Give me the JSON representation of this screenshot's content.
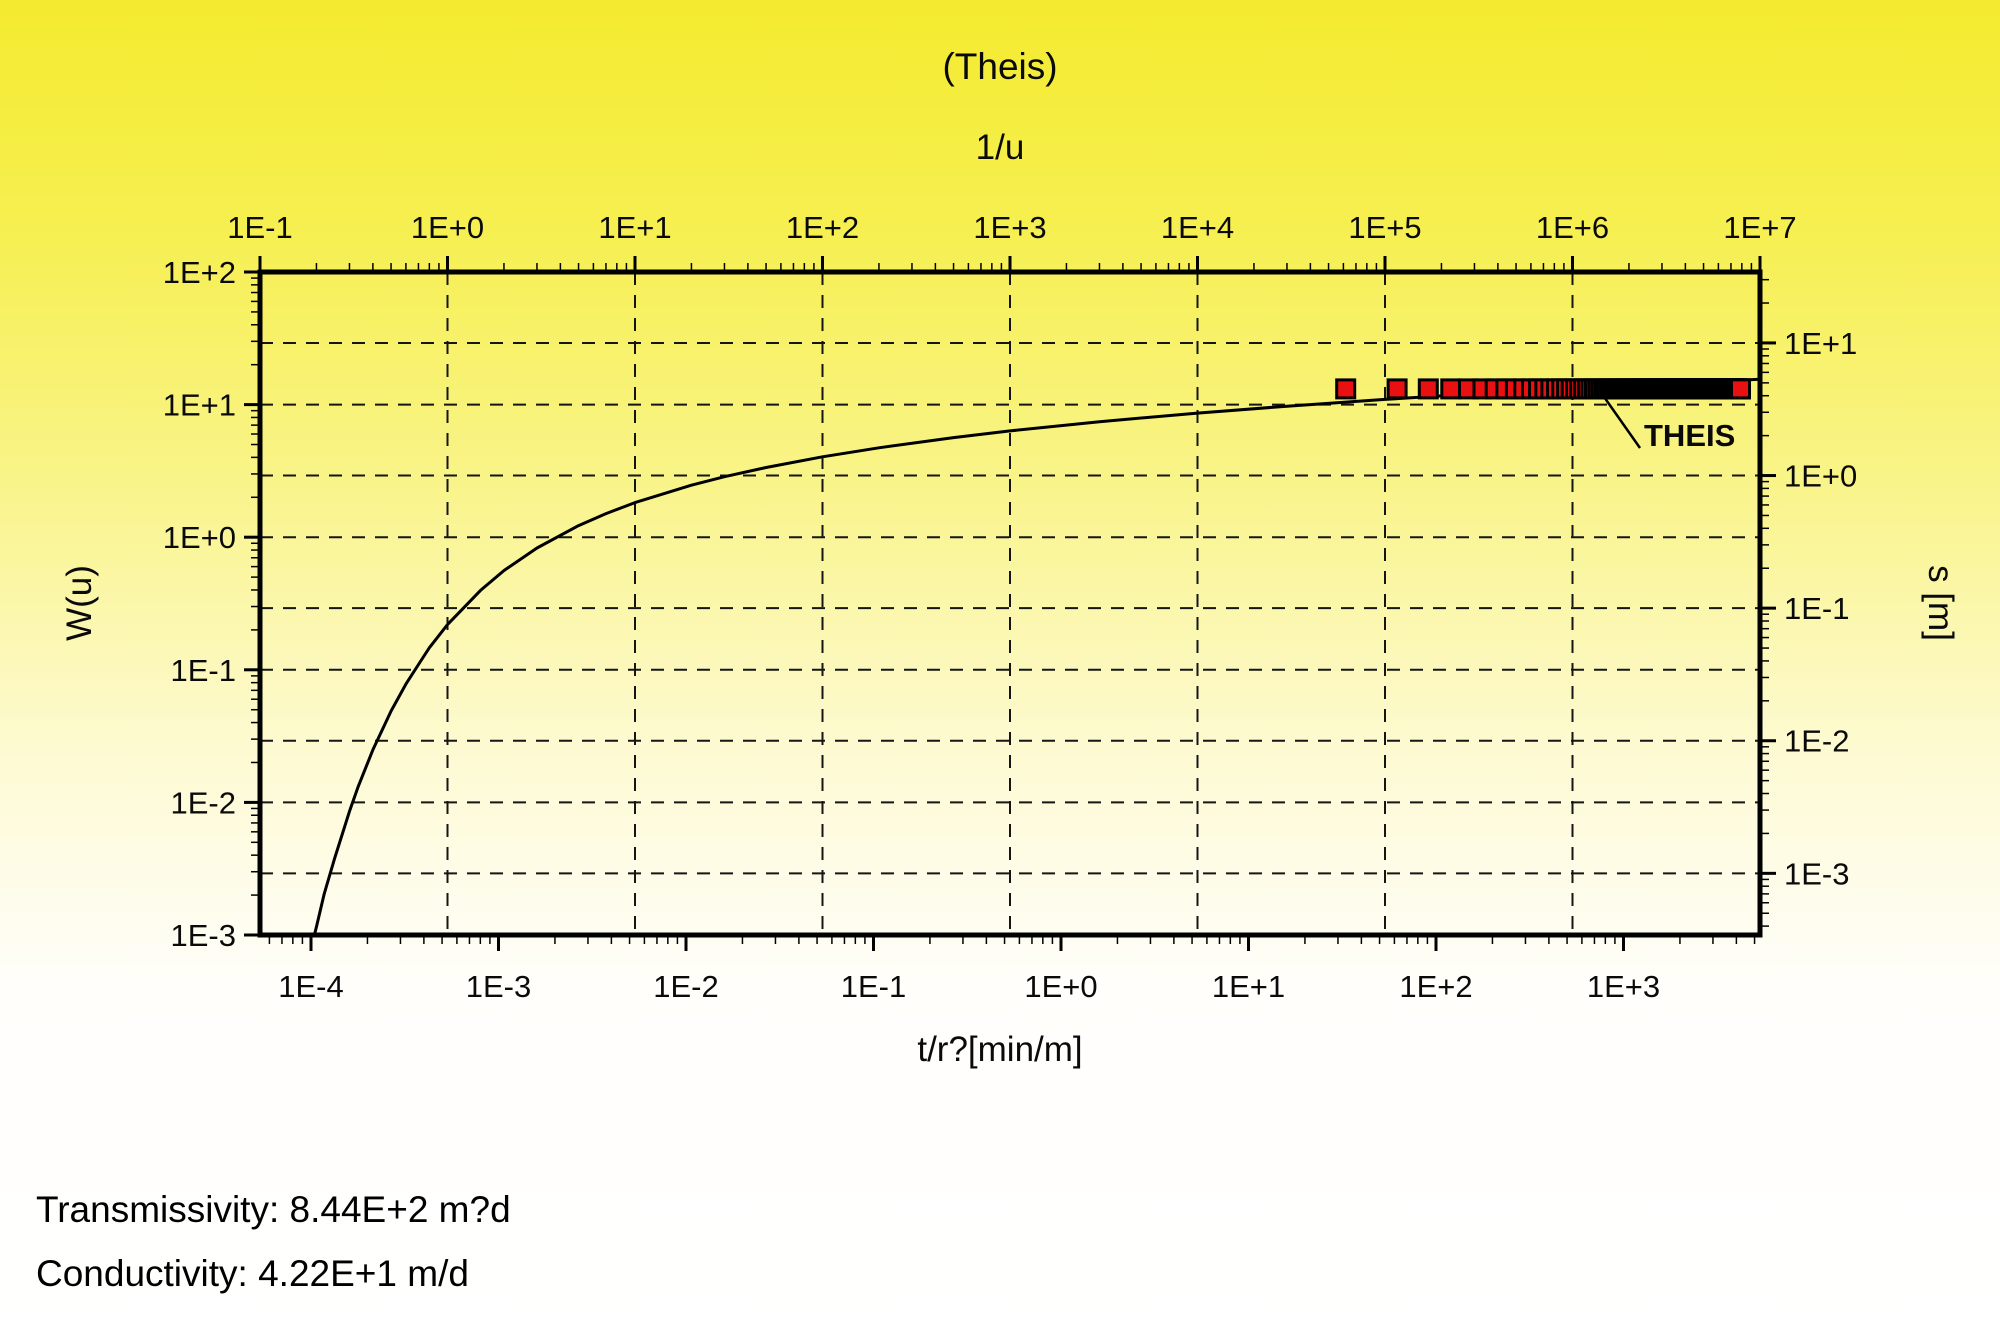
{
  "title": "(Theis)",
  "results": {
    "transmissivity": "Transmissivity: 8.44E+2 m?d",
    "conductivity": "Conductivity: 4.22E+1 m/d"
  },
  "chart_data": {
    "type": "line",
    "title": "(Theis)",
    "background": {
      "top_color": "#f4eb2f",
      "bottom_color": "#ffffff"
    },
    "axes": {
      "top": {
        "label": "1/u",
        "scale": "log",
        "ticks": [
          "1E-1",
          "1E+0",
          "1E+1",
          "1E+2",
          "1E+3",
          "1E+4",
          "1E+5",
          "1E+6",
          "1E+7"
        ],
        "tick_logs": [
          -1,
          0,
          1,
          2,
          3,
          4,
          5,
          6,
          7
        ],
        "log_min": -1,
        "log_max": 7
      },
      "bottom": {
        "label": "t/r?[min/m]",
        "scale": "log",
        "ticks": [
          "1E-4",
          "1E-3",
          "1E-2",
          "1E-1",
          "1E+0",
          "1E+1",
          "1E+2",
          "1E+3"
        ],
        "tick_logs": [
          -4,
          -3,
          -2,
          -1,
          0,
          1,
          2,
          3
        ],
        "log_min": -4.272,
        "log_max": 3.728
      },
      "left": {
        "label": "W(u)",
        "scale": "log",
        "ticks": [
          "1E+2",
          "1E+1",
          "1E+0",
          "1E-1",
          "1E-2",
          "1E-3"
        ],
        "tick_logs": [
          2,
          1,
          0,
          -1,
          -2,
          -3
        ],
        "log_min": -3,
        "log_max": 2
      },
      "right": {
        "label": "s [m]",
        "scale": "log",
        "ticks": [
          "1E+1",
          "1E+0",
          "1E-1",
          "1E-2",
          "1E-3"
        ],
        "tick_logs": [
          1,
          0,
          -1,
          -2,
          -3
        ],
        "log_min": -3.465,
        "log_max": 1.535
      }
    },
    "grid": {
      "style": "dashed",
      "color": "#151515",
      "vertical_top_decades": [
        0,
        1,
        2,
        3,
        4,
        5,
        6
      ],
      "horizontal_left_decades": [
        1,
        0,
        -1,
        -2
      ],
      "horizontal_right_decades": [
        1,
        0,
        -1,
        -2,
        -3
      ]
    },
    "series": [
      {
        "name": "theis-type-curve",
        "type": "line",
        "x_axis": "top",
        "y_axis": "left",
        "color": "#000000",
        "x_1_over_u": [
          0.195,
          0.2,
          0.22,
          0.25,
          0.3,
          0.333,
          0.4,
          0.5,
          0.6,
          0.7,
          0.8,
          1,
          1.5,
          2,
          3,
          5,
          7,
          10,
          20,
          30,
          50,
          100,
          200,
          500,
          1000,
          3000,
          10000,
          30000,
          100000,
          300000,
          1000000,
          3000000,
          10000000
        ],
        "w_u": [
          0.001,
          0.00115,
          0.00204,
          0.00378,
          0.00857,
          0.01305,
          0.02491,
          0.0489,
          0.078,
          0.1097,
          0.1464,
          0.2194,
          0.3973,
          0.5598,
          0.8294,
          1.2227,
          1.507,
          1.8229,
          2.4679,
          2.857,
          3.3547,
          4.0379,
          4.726,
          5.639,
          6.3315,
          7.4295,
          8.6332,
          9.7316,
          10.9357,
          12.0343,
          13.2383,
          14.3369,
          15.5409
        ]
      },
      {
        "name": "observed-drawdown",
        "label": "THEIS",
        "type": "scatter",
        "marker": "square",
        "x_axis": "bottom",
        "y_axis": "right",
        "color": "#e81010",
        "edge_color": "#000000",
        "s_m": 4.5,
        "t_r2_start": 33,
        "t_r2_step": 29,
        "t_r2_count": 145
      }
    ]
  }
}
